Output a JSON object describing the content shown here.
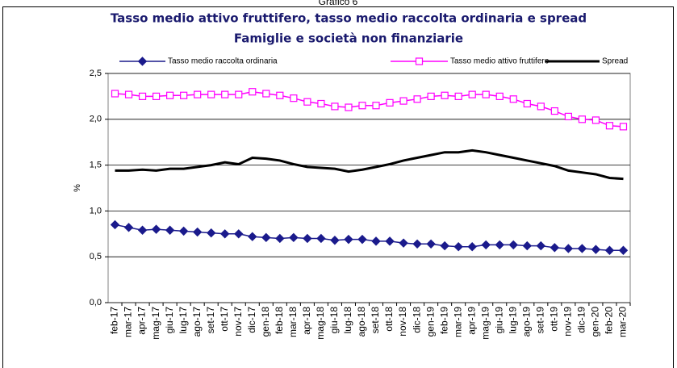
{
  "chart_data": {
    "type": "line",
    "caption": "Grafico 6",
    "title": "Tasso medio attivo fruttifero, tasso medio raccolta ordinaria e spread",
    "subtitle": "Famiglie e società non finanziarie",
    "y_label": "%",
    "categories": [
      "feb-17",
      "mar-17",
      "apr-17",
      "mag-17",
      "giu-17",
      "lug-17",
      "ago-17",
      "set-17",
      "ott-17",
      "nov-17",
      "dic-17",
      "gen-18",
      "feb-18",
      "mar-18",
      "apr-18",
      "mag-18",
      "giu-18",
      "lug-18",
      "ago-18",
      "set-18",
      "ott-18",
      "nov-18",
      "dic-18",
      "gen-19",
      "feb-19",
      "mar-19",
      "apr-19",
      "mag-19",
      "giu-19",
      "lug-19",
      "ago-19",
      "set-19",
      "ott-19",
      "nov-19",
      "dic-19",
      "gen-20",
      "feb-20",
      "mar-20"
    ],
    "series": [
      {
        "name": "Tasso medio raccolta ordinaria",
        "color": "#1a1a8c",
        "marker": "diamond",
        "values": [
          0.85,
          0.82,
          0.79,
          0.8,
          0.79,
          0.78,
          0.77,
          0.76,
          0.75,
          0.75,
          0.72,
          0.71,
          0.7,
          0.71,
          0.7,
          0.7,
          0.68,
          0.69,
          0.69,
          0.67,
          0.67,
          0.65,
          0.64,
          0.64,
          0.62,
          0.61,
          0.61,
          0.63,
          0.63,
          0.63,
          0.62,
          0.62,
          0.6,
          0.59,
          0.59,
          0.58,
          0.57,
          0.57
        ]
      },
      {
        "name": "Tasso medio attivo fruttifero",
        "color": "#ff00ff",
        "marker": "square",
        "values": [
          2.28,
          2.27,
          2.25,
          2.25,
          2.26,
          2.26,
          2.27,
          2.27,
          2.27,
          2.27,
          2.3,
          2.28,
          2.26,
          2.23,
          2.19,
          2.17,
          2.14,
          2.13,
          2.15,
          2.15,
          2.18,
          2.2,
          2.22,
          2.25,
          2.26,
          2.25,
          2.27,
          2.27,
          2.25,
          2.22,
          2.17,
          2.14,
          2.09,
          2.03,
          2.0,
          1.99,
          1.93,
          1.92
        ]
      },
      {
        "name": "Spread",
        "color": "#000000",
        "marker": "none",
        "values": [
          1.44,
          1.44,
          1.45,
          1.44,
          1.46,
          1.46,
          1.48,
          1.5,
          1.53,
          1.51,
          1.58,
          1.57,
          1.55,
          1.51,
          1.48,
          1.47,
          1.46,
          1.43,
          1.45,
          1.48,
          1.51,
          1.55,
          1.58,
          1.61,
          1.64,
          1.64,
          1.66,
          1.64,
          1.61,
          1.58,
          1.55,
          1.52,
          1.49,
          1.44,
          1.42,
          1.4,
          1.36,
          1.35
        ]
      }
    ],
    "ylim": [
      0,
      2.5
    ],
    "yticks": [
      {
        "value": 0,
        "label": "0,0"
      },
      {
        "value": 0.5,
        "label": "0,5"
      },
      {
        "value": 1,
        "label": "1,0"
      },
      {
        "value": 1.5,
        "label": "1,5"
      },
      {
        "value": 2,
        "label": "2,0"
      },
      {
        "value": 2.5,
        "label": "2,5"
      }
    ],
    "grid": true
  }
}
